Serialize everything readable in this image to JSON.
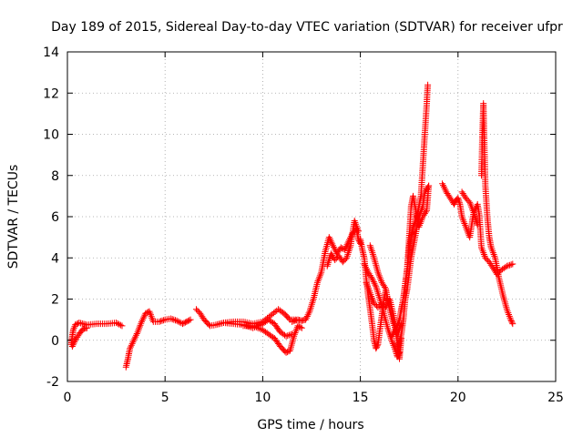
{
  "chart_data": {
    "type": "scatter",
    "title": "Day 189 of 2015, Sidereal Day-to-day VTEC variation (SDTVAR) for receiver ufpr",
    "xlabel": "GPS time / hours",
    "ylabel": "SDTVAR / TECUs",
    "xlim": [
      0,
      25
    ],
    "ylim": [
      -2,
      14
    ],
    "xticks": [
      "0",
      "5",
      "10",
      "15",
      "20",
      "25"
    ],
    "yticks": [
      "-2",
      "0",
      "2",
      "4",
      "6",
      "8",
      "10",
      "12",
      "14"
    ],
    "grid": true,
    "legend": "none",
    "marker": "+",
    "color": "#ff0000",
    "series": [
      {
        "points": [
          [
            0.2,
            -0.2
          ],
          [
            0.25,
            0.2
          ],
          [
            0.3,
            0.5
          ],
          [
            0.4,
            0.75
          ],
          [
            0.6,
            0.85
          ],
          [
            1.0,
            0.75
          ],
          [
            1.5,
            0.8
          ],
          [
            2.0,
            0.8
          ],
          [
            2.5,
            0.85
          ],
          [
            2.8,
            0.7
          ]
        ]
      },
      {
        "points": [
          [
            0.25,
            -0.3
          ],
          [
            0.4,
            0.0
          ],
          [
            0.6,
            0.3
          ],
          [
            0.8,
            0.55
          ],
          [
            1.0,
            0.6
          ]
        ]
      },
      {
        "points": [
          [
            3.0,
            -1.3
          ],
          [
            3.1,
            -0.9
          ],
          [
            3.2,
            -0.4
          ],
          [
            3.4,
            0.0
          ],
          [
            3.6,
            0.4
          ],
          [
            3.8,
            0.9
          ],
          [
            4.0,
            1.3
          ],
          [
            4.2,
            1.4
          ],
          [
            4.4,
            0.9
          ],
          [
            4.7,
            0.9
          ],
          [
            5.0,
            1.0
          ],
          [
            5.3,
            1.05
          ],
          [
            5.6,
            0.95
          ],
          [
            5.9,
            0.8
          ],
          [
            6.1,
            0.9
          ],
          [
            6.3,
            1.0
          ]
        ]
      },
      {
        "points": [
          [
            6.6,
            1.5
          ],
          [
            6.8,
            1.3
          ],
          [
            7.0,
            1.0
          ],
          [
            7.3,
            0.7
          ],
          [
            7.6,
            0.75
          ],
          [
            8.0,
            0.85
          ],
          [
            8.5,
            0.9
          ],
          [
            9.0,
            0.9
          ],
          [
            9.5,
            0.8
          ],
          [
            10.0,
            0.9
          ],
          [
            10.4,
            1.2
          ],
          [
            10.8,
            1.5
          ],
          [
            11.1,
            1.3
          ],
          [
            11.4,
            1.0
          ],
          [
            11.7,
            1.0
          ]
        ]
      },
      {
        "points": [
          [
            9.0,
            0.7
          ],
          [
            9.5,
            0.7
          ],
          [
            10.0,
            0.5
          ],
          [
            10.3,
            0.3
          ],
          [
            10.6,
            0.1
          ],
          [
            10.9,
            -0.3
          ],
          [
            11.2,
            -0.6
          ],
          [
            11.4,
            -0.5
          ],
          [
            11.6,
            0.2
          ],
          [
            11.8,
            0.7
          ],
          [
            12.0,
            0.6
          ]
        ]
      },
      {
        "points": [
          [
            8.0,
            0.85
          ],
          [
            9.0,
            0.75
          ],
          [
            9.5,
            0.6
          ],
          [
            10.0,
            0.8
          ],
          [
            10.3,
            1.0
          ],
          [
            10.6,
            0.8
          ],
          [
            10.9,
            0.4
          ],
          [
            11.2,
            0.2
          ],
          [
            11.5,
            0.3
          ]
        ]
      },
      {
        "points": [
          [
            11.5,
            0.9
          ],
          [
            11.8,
            1.0
          ],
          [
            12.0,
            0.95
          ],
          [
            12.2,
            1.0
          ],
          [
            12.4,
            1.4
          ],
          [
            12.6,
            2.0
          ],
          [
            12.8,
            2.8
          ],
          [
            13.0,
            3.3
          ],
          [
            13.2,
            4.3
          ],
          [
            13.4,
            5.0
          ],
          [
            13.6,
            4.6
          ],
          [
            13.8,
            4.2
          ],
          [
            14.0,
            4.5
          ],
          [
            14.2,
            4.4
          ],
          [
            14.4,
            4.8
          ],
          [
            14.6,
            5.2
          ],
          [
            14.8,
            5.4
          ],
          [
            14.9,
            4.9
          ],
          [
            15.0,
            4.7
          ]
        ]
      },
      {
        "points": [
          [
            13.3,
            3.6
          ],
          [
            13.5,
            4.2
          ],
          [
            13.7,
            3.9
          ],
          [
            13.9,
            4.1
          ],
          [
            14.1,
            3.8
          ],
          [
            14.3,
            4.0
          ],
          [
            14.5,
            4.6
          ],
          [
            14.7,
            5.8
          ],
          [
            14.9,
            5.3
          ]
        ]
      },
      {
        "points": [
          [
            15.0,
            4.9
          ],
          [
            15.1,
            4.4
          ],
          [
            15.2,
            4.0
          ],
          [
            15.3,
            3.0
          ],
          [
            15.4,
            2.2
          ],
          [
            15.5,
            1.5
          ],
          [
            15.6,
            0.8
          ],
          [
            15.7,
            0.0
          ],
          [
            15.8,
            -0.4
          ],
          [
            15.9,
            -0.2
          ],
          [
            16.0,
            0.5
          ],
          [
            16.1,
            1.2
          ],
          [
            16.2,
            2.0
          ],
          [
            16.3,
            2.4
          ]
        ]
      },
      {
        "points": [
          [
            15.2,
            3.7
          ],
          [
            15.4,
            3.3
          ],
          [
            15.6,
            3.0
          ],
          [
            15.8,
            2.6
          ],
          [
            16.0,
            2.0
          ],
          [
            16.2,
            1.3
          ],
          [
            16.4,
            0.6
          ],
          [
            16.6,
            0.0
          ],
          [
            16.8,
            -0.5
          ],
          [
            16.9,
            -0.8
          ],
          [
            17.0,
            -0.6
          ]
        ]
      },
      {
        "points": [
          [
            15.5,
            4.6
          ],
          [
            15.7,
            4.0
          ],
          [
            15.9,
            3.3
          ],
          [
            16.1,
            2.8
          ],
          [
            16.3,
            2.5
          ],
          [
            16.5,
            1.5
          ],
          [
            16.7,
            0.8
          ],
          [
            16.9,
            0.3
          ],
          [
            17.1,
            0.8
          ]
        ]
      },
      {
        "points": [
          [
            15.3,
            2.8
          ],
          [
            15.5,
            2.3
          ],
          [
            15.7,
            1.8
          ],
          [
            15.9,
            1.6
          ],
          [
            16.1,
            1.8
          ],
          [
            16.3,
            1.6
          ],
          [
            16.5,
            2.0
          ],
          [
            16.7,
            1.2
          ],
          [
            16.9,
            -0.2
          ],
          [
            17.0,
            -0.9
          ],
          [
            17.1,
            0.1
          ]
        ]
      },
      {
        "points": [
          [
            16.6,
            0.2
          ],
          [
            16.8,
            0.5
          ],
          [
            17.0,
            1.0
          ],
          [
            17.2,
            2.0
          ],
          [
            17.4,
            3.5
          ],
          [
            17.5,
            4.5
          ],
          [
            17.7,
            5.5
          ],
          [
            17.9,
            6.0
          ],
          [
            18.0,
            6.5
          ],
          [
            18.1,
            7.0
          ],
          [
            18.2,
            8.5
          ],
          [
            18.3,
            10.0
          ],
          [
            18.4,
            11.5
          ],
          [
            18.45,
            12.4
          ]
        ]
      },
      {
        "points": [
          [
            16.9,
            -0.5
          ],
          [
            17.1,
            0.3
          ],
          [
            17.2,
            1.0
          ],
          [
            17.3,
            2.0
          ],
          [
            17.4,
            2.5
          ],
          [
            17.6,
            4.0
          ],
          [
            17.8,
            5.0
          ],
          [
            18.0,
            6.0
          ],
          [
            18.2,
            6.5
          ],
          [
            18.3,
            7.2
          ],
          [
            18.5,
            7.5
          ]
        ]
      },
      {
        "points": [
          [
            17.0,
            1.0
          ],
          [
            17.2,
            2.0
          ],
          [
            17.4,
            3.5
          ],
          [
            17.5,
            5.0
          ],
          [
            17.6,
            6.5
          ],
          [
            17.7,
            7.0
          ],
          [
            17.8,
            6.5
          ],
          [
            18.0,
            5.5
          ],
          [
            18.2,
            6.0
          ],
          [
            18.4,
            6.3
          ],
          [
            18.5,
            7.5
          ]
        ]
      },
      {
        "points": [
          [
            19.2,
            7.6
          ],
          [
            19.4,
            7.2
          ],
          [
            19.6,
            6.9
          ],
          [
            19.8,
            6.6
          ],
          [
            19.9,
            6.8
          ],
          [
            20.0,
            6.9
          ],
          [
            20.1,
            6.6
          ],
          [
            20.2,
            6.0
          ],
          [
            20.4,
            5.5
          ],
          [
            20.6,
            5.0
          ],
          [
            20.8,
            6.2
          ],
          [
            21.0,
            6.6
          ],
          [
            21.1,
            6.0
          ],
          [
            21.2,
            4.5
          ],
          [
            21.4,
            4.0
          ],
          [
            21.6,
            3.8
          ],
          [
            21.8,
            3.5
          ],
          [
            22.0,
            3.2
          ],
          [
            22.2,
            3.4
          ],
          [
            22.5,
            3.6
          ],
          [
            22.8,
            3.7
          ]
        ]
      },
      {
        "points": [
          [
            20.2,
            7.2
          ],
          [
            20.4,
            6.9
          ],
          [
            20.6,
            6.7
          ],
          [
            20.8,
            6.2
          ],
          [
            21.0,
            5.6
          ]
        ]
      },
      {
        "points": [
          [
            21.2,
            8.0
          ],
          [
            21.25,
            10.0
          ],
          [
            21.3,
            11.5
          ],
          [
            21.35,
            9.5
          ],
          [
            21.4,
            7.5
          ],
          [
            21.5,
            6.0
          ],
          [
            21.6,
            5.0
          ],
          [
            21.7,
            4.5
          ],
          [
            21.9,
            4.0
          ],
          [
            22.1,
            3.0
          ],
          [
            22.3,
            2.2
          ],
          [
            22.5,
            1.5
          ],
          [
            22.7,
            1.0
          ],
          [
            22.8,
            0.8
          ]
        ]
      }
    ]
  }
}
